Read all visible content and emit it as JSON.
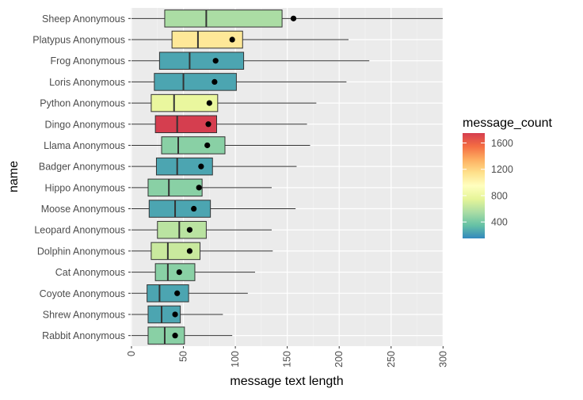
{
  "chart_data": {
    "type": "boxplot",
    "xlabel": "message text length",
    "ylabel": "name",
    "xlim": [
      0,
      305
    ],
    "x_ticks": [
      0,
      50,
      100,
      150,
      200,
      250,
      300
    ],
    "x_tick_labels": [
      "0",
      "50",
      "100",
      "150",
      "200",
      "250",
      "300"
    ],
    "grid": true,
    "background": "#ebebeb",
    "legend": {
      "title": "message_count",
      "placement": "right",
      "range": [
        150,
        1750
      ],
      "ticks": [
        400,
        800,
        1200,
        1600
      ],
      "tick_labels": [
        "400",
        "800",
        "1200",
        "1600"
      ],
      "palette": [
        "#3288bd",
        "#66c2a5",
        "#abdda4",
        "#e6f598",
        "#ffffbf",
        "#fee08b",
        "#fdae61",
        "#f46d43",
        "#d53e4f"
      ]
    },
    "series": [
      {
        "name": "Sheep Anonymous",
        "whisker_low": 0,
        "q1": 32,
        "median": 72,
        "q3": 145,
        "whisker_high": 305,
        "mean": 156,
        "message_count": 550
      },
      {
        "name": "Platypus Anonymous",
        "whisker_low": 0,
        "q1": 39,
        "median": 64,
        "q3": 107,
        "whisker_high": 209,
        "mean": 97,
        "message_count": 1100
      },
      {
        "name": "Frog Anonymous",
        "whisker_low": 0,
        "q1": 27,
        "median": 56,
        "q3": 108,
        "whisker_high": 229,
        "mean": 81,
        "message_count": 250
      },
      {
        "name": "Loris Anonymous",
        "whisker_low": 0,
        "q1": 22,
        "median": 50,
        "q3": 101,
        "whisker_high": 207,
        "mean": 80,
        "message_count": 250
      },
      {
        "name": "Python Anonymous",
        "whisker_low": 0,
        "q1": 19,
        "median": 41,
        "q3": 83,
        "whisker_high": 178,
        "mean": 75,
        "message_count": 780
      },
      {
        "name": "Dingo Anonymous",
        "whisker_low": 0,
        "q1": 23,
        "median": 44,
        "q3": 82,
        "whisker_high": 169,
        "mean": 74,
        "message_count": 1750
      },
      {
        "name": "Llama Anonymous",
        "whisker_low": 0,
        "q1": 29,
        "median": 45,
        "q3": 90,
        "whisker_high": 172,
        "mean": 73,
        "message_count": 450
      },
      {
        "name": "Badger Anonymous",
        "whisker_low": 0,
        "q1": 24,
        "median": 44,
        "q3": 78,
        "whisker_high": 159,
        "mean": 67,
        "message_count": 250
      },
      {
        "name": "Hippo Anonymous",
        "whisker_low": 0,
        "q1": 16,
        "median": 36,
        "q3": 68,
        "whisker_high": 135,
        "mean": 65,
        "message_count": 450
      },
      {
        "name": "Moose Anonymous",
        "whisker_low": 0,
        "q1": 17,
        "median": 42,
        "q3": 76,
        "whisker_high": 158,
        "mean": 60,
        "message_count": 250
      },
      {
        "name": "Leopard Anonymous",
        "whisker_low": 0,
        "q1": 25,
        "median": 46,
        "q3": 72,
        "whisker_high": 135,
        "mean": 56,
        "message_count": 600
      },
      {
        "name": "Dolphin Anonymous",
        "whisker_low": 0,
        "q1": 19,
        "median": 35,
        "q3": 66,
        "whisker_high": 136,
        "mean": 56,
        "message_count": 650
      },
      {
        "name": "Cat Anonymous",
        "whisker_low": 0,
        "q1": 23,
        "median": 35,
        "q3": 61,
        "whisker_high": 119,
        "mean": 46,
        "message_count": 450
      },
      {
        "name": "Coyote Anonymous",
        "whisker_low": 0,
        "q1": 15,
        "median": 27,
        "q3": 55,
        "whisker_high": 112,
        "mean": 44,
        "message_count": 250
      },
      {
        "name": "Shrew Anonymous",
        "whisker_low": 0,
        "q1": 16,
        "median": 29,
        "q3": 47,
        "whisker_high": 88,
        "mean": 42,
        "message_count": 250
      },
      {
        "name": "Rabbit Anonymous",
        "whisker_low": 0,
        "q1": 16,
        "median": 32,
        "q3": 51,
        "whisker_high": 97,
        "mean": 42,
        "message_count": 450
      }
    ]
  }
}
